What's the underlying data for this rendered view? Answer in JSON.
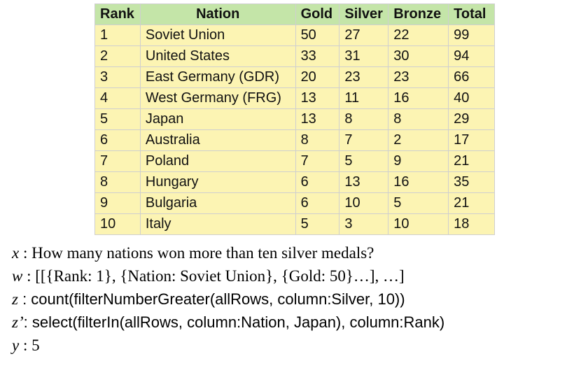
{
  "table": {
    "headers": [
      "Rank",
      "Nation",
      "Gold",
      "Silver",
      "Bronze",
      "Total"
    ],
    "rows": [
      [
        "1",
        "Soviet Union",
        "50",
        "27",
        "22",
        "99"
      ],
      [
        "2",
        "United States",
        "33",
        "31",
        "30",
        "94"
      ],
      [
        "3",
        "East Germany (GDR)",
        "20",
        "23",
        "23",
        "66"
      ],
      [
        "4",
        "West Germany (FRG)",
        "13",
        "11",
        "16",
        "40"
      ],
      [
        "5",
        "Japan",
        "13",
        "8",
        "8",
        "29"
      ],
      [
        "6",
        "Australia",
        "8",
        "7",
        "2",
        "17"
      ],
      [
        "7",
        "Poland",
        "7",
        "5",
        "9",
        "21"
      ],
      [
        "8",
        "Hungary",
        "6",
        "13",
        "16",
        "35"
      ],
      [
        "9",
        "Bulgaria",
        "6",
        "10",
        "5",
        "21"
      ],
      [
        "10",
        "Italy",
        "5",
        "3",
        "10",
        "18"
      ]
    ],
    "colors": {
      "header_bg": "#c4e5a8",
      "cell_bg": "#fcf4b3"
    }
  },
  "lines": [
    {
      "var": "x",
      "sep": " : ",
      "text": "How many nations won more than ten silver medals?",
      "style": "serif"
    },
    {
      "var": "w",
      "sep": " : ",
      "text": "[[{Rank: 1}, {Nation: Soviet Union}, {Gold: 50}…], …]",
      "style": "serif"
    },
    {
      "var": "z",
      "sep": " : ",
      "text": "count(filterNumberGreater(allRows, column:Silver, 10))",
      "style": "sans"
    },
    {
      "var": "z’",
      "sep": ": ",
      "text": "select(filterIn(allRows, column:Nation, Japan), column:Rank)",
      "style": "sans"
    },
    {
      "var": "y",
      "sep": " : ",
      "text": "5",
      "style": "serif"
    }
  ]
}
